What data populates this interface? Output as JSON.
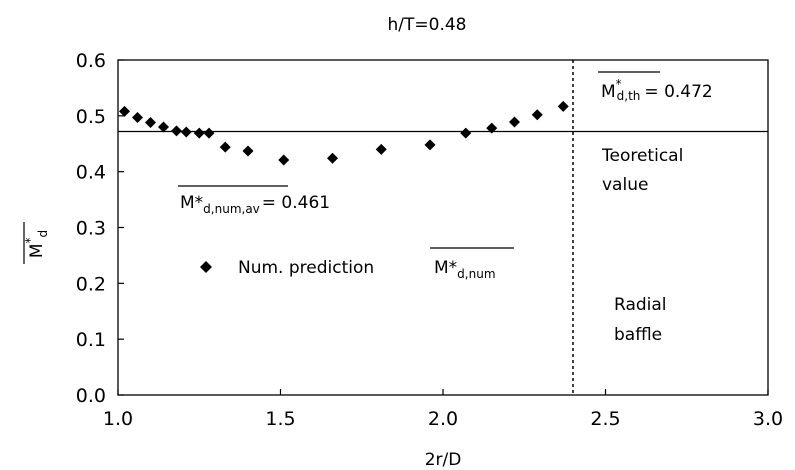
{
  "chart_data": {
    "type": "scatter",
    "title": "h/T=0.48",
    "xlabel": "2r/D",
    "ylabel": {
      "main": "M",
      "sup": "*",
      "sub": "d"
    },
    "xlim": [
      1.0,
      3.0
    ],
    "ylim": [
      0.0,
      0.6
    ],
    "x_ticks": [
      "1.0",
      "1.5",
      "2.0",
      "2.5",
      "3.0"
    ],
    "y_ticks": [
      "0.0",
      "0.1",
      "0.2",
      "0.3",
      "0.4",
      "0.5",
      "0.6"
    ],
    "grid": false,
    "series": [
      {
        "name": "Num. prediction",
        "marker": "diamond",
        "color": "#000000",
        "x": [
          1.02,
          1.06,
          1.1,
          1.14,
          1.18,
          1.21,
          1.25,
          1.28,
          1.33,
          1.4,
          1.51,
          1.66,
          1.81,
          1.96,
          2.07,
          2.15,
          2.22,
          2.29,
          2.37
        ],
        "y": [
          0.508,
          0.497,
          0.488,
          0.48,
          0.473,
          0.471,
          0.469,
          0.469,
          0.444,
          0.437,
          0.421,
          0.424,
          0.44,
          0.448,
          0.469,
          0.478,
          0.489,
          0.502,
          0.517
        ]
      }
    ],
    "reference_lines": [
      {
        "orientation": "horizontal",
        "value": 0.472,
        "style": "solid"
      },
      {
        "orientation": "vertical",
        "value": 2.4,
        "style": "dotted"
      }
    ],
    "annotations": {
      "theoretical": {
        "main": "M",
        "sup": "*",
        "sub": "d,th",
        "value_text": "= 0.472"
      },
      "average": {
        "main": "M*",
        "sub": "d,num,av",
        "value_text": "= 0.461"
      },
      "legend_label": "Num. prediction",
      "legend_symbol": {
        "main": "M*",
        "sub": "d,num"
      },
      "teoretical_line1": "Teoretical",
      "teoretical_line2": "value",
      "radial_line1": "Radial",
      "radial_line2": "baffle"
    }
  }
}
